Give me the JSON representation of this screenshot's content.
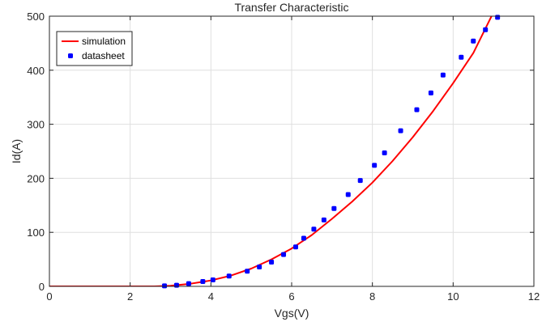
{
  "chart_data": {
    "type": "line",
    "title": "Transfer Characteristic",
    "xlabel": "Vgs(V)",
    "ylabel": "Id(A)",
    "xlim": [
      0,
      12
    ],
    "ylim": [
      0,
      500
    ],
    "xticks": [
      0,
      2,
      4,
      6,
      8,
      10,
      12
    ],
    "yticks": [
      0,
      100,
      200,
      300,
      400,
      500
    ],
    "grid": true,
    "legend_position": "top-left",
    "series": [
      {
        "name": "simulation",
        "style": "line",
        "color": "#ff0000",
        "x": [
          0,
          1,
          2,
          2.6,
          3.0,
          3.5,
          4.0,
          4.5,
          5.0,
          5.5,
          6.0,
          6.5,
          7.0,
          7.5,
          8.0,
          8.5,
          9.0,
          9.5,
          10.0,
          10.5,
          10.95
        ],
        "y": [
          0,
          0,
          0,
          0,
          1,
          5,
          11,
          20,
          33,
          50,
          70,
          95,
          125,
          157,
          192,
          232,
          276,
          324,
          376,
          432,
          500
        ]
      },
      {
        "name": "datasheet",
        "style": "markers",
        "color": "#0000ff",
        "x": [
          2.85,
          3.15,
          3.45,
          3.8,
          4.05,
          4.45,
          4.9,
          5.2,
          5.5,
          5.8,
          6.1,
          6.3,
          6.55,
          6.8,
          7.05,
          7.4,
          7.7,
          8.05,
          8.3,
          8.7,
          9.1,
          9.45,
          9.75,
          10.2,
          10.5,
          10.8,
          11.1
        ],
        "y": [
          1,
          2,
          5,
          9,
          12,
          19,
          28,
          36,
          45,
          59,
          73,
          89,
          106,
          123,
          144,
          170,
          196,
          224,
          247,
          288,
          327,
          358,
          391,
          424,
          454,
          475,
          498
        ]
      }
    ]
  }
}
